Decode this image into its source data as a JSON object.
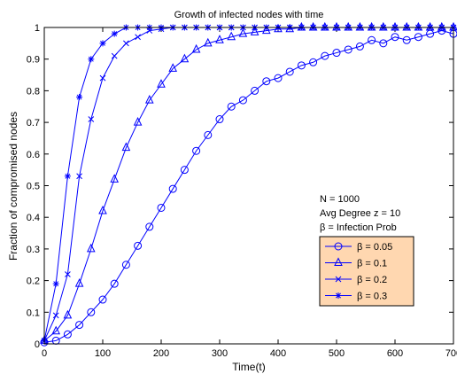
{
  "chart_data": {
    "type": "line",
    "title": "Growth of infected nodes with time",
    "xlabel": "Time(t)",
    "ylabel": "Fraction of compromised nodes",
    "xlim": [
      0,
      700
    ],
    "ylim": [
      0,
      1
    ],
    "xticks": [
      0,
      100,
      200,
      300,
      400,
      500,
      600,
      700
    ],
    "yticks": [
      0,
      0.1,
      0.2,
      0.3,
      0.4,
      0.5,
      0.6,
      0.7,
      0.8,
      0.9,
      1
    ],
    "xtick_labels": [
      "0",
      "100",
      "200",
      "300",
      "400",
      "500",
      "600",
      "700"
    ],
    "ytick_labels": [
      "0",
      "0.1",
      "0.2",
      "0.3",
      "0.4",
      "0.5",
      "0.6",
      "0.7",
      "0.8",
      "0.9",
      "1"
    ],
    "grid": false,
    "line_color": "#0000ff",
    "legend_background": "#ffd7b0",
    "legend_position": "right",
    "annotations": [
      "N = 1000",
      "Avg Degree z = 10",
      "β = Infection Prob"
    ],
    "x": [
      0,
      20,
      40,
      60,
      80,
      100,
      120,
      140,
      160,
      180,
      200,
      220,
      240,
      260,
      280,
      300,
      320,
      340,
      360,
      380,
      400,
      420,
      440,
      460,
      480,
      500,
      520,
      540,
      560,
      580,
      600,
      620,
      640,
      660,
      680,
      700
    ],
    "series": [
      {
        "name": "β = 0.05",
        "marker": "circle",
        "values": [
          0.005,
          0.01,
          0.03,
          0.06,
          0.1,
          0.14,
          0.19,
          0.25,
          0.31,
          0.37,
          0.43,
          0.49,
          0.55,
          0.61,
          0.66,
          0.71,
          0.75,
          0.77,
          0.8,
          0.83,
          0.84,
          0.86,
          0.88,
          0.89,
          0.91,
          0.92,
          0.93,
          0.94,
          0.96,
          0.95,
          0.97,
          0.96,
          0.97,
          0.98,
          0.99,
          0.98
        ]
      },
      {
        "name": "β = 0.1",
        "marker": "triangle",
        "values": [
          0.01,
          0.04,
          0.09,
          0.19,
          0.3,
          0.42,
          0.52,
          0.62,
          0.7,
          0.77,
          0.82,
          0.87,
          0.9,
          0.93,
          0.95,
          0.96,
          0.97,
          0.98,
          0.985,
          0.99,
          0.995,
          0.995,
          1,
          1,
          1,
          1,
          1,
          1,
          1,
          1,
          1,
          1,
          1,
          1,
          1,
          1
        ]
      },
      {
        "name": "β = 0.2",
        "marker": "x",
        "values": [
          0.01,
          0.09,
          0.22,
          0.53,
          0.71,
          0.84,
          0.91,
          0.95,
          0.97,
          0.99,
          0.995,
          1,
          1,
          1,
          1,
          1,
          1,
          1,
          1,
          1,
          1,
          1,
          1,
          1,
          1,
          1,
          1,
          1,
          1,
          1,
          1,
          1,
          1,
          1,
          1,
          1
        ]
      },
      {
        "name": "β = 0.3",
        "marker": "star",
        "values": [
          0.01,
          0.19,
          0.53,
          0.78,
          0.9,
          0.95,
          0.98,
          1,
          1,
          1,
          1,
          1,
          1,
          1,
          1,
          1,
          1,
          1,
          1,
          1,
          1,
          1,
          1,
          1,
          1,
          1,
          1,
          1,
          1,
          1,
          1,
          1,
          1,
          1,
          1,
          1
        ]
      }
    ]
  }
}
